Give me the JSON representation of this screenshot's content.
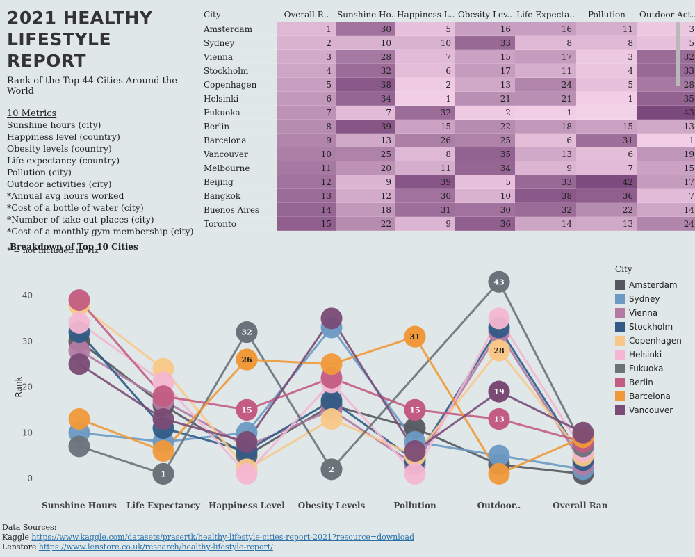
{
  "header": {
    "title": "2021 HEALTHY LIFESTYLE REPORT",
    "subtitle": "Rank of the Top 44 Cities Around the World",
    "metrics_heading": "10 Metrics",
    "metrics": [
      "Sunshine hours (city)",
      "Happiness level (country)",
      "Obesity levels (country)",
      "Life expectancy (country)",
      "Pollution (city)",
      "Outdoor activities (city)",
      "*Annual avg hours worked",
      "*Cost of a bottle of water (city)",
      "*Number of take out places (city)",
      "*Cost of a monthly gym membership (city)"
    ],
    "footnote": "* = not included in Viz"
  },
  "table": {
    "columns": [
      "City",
      "Overall R..",
      "Sunshine Ho..",
      "Happiness L..",
      "Obesity Lev..",
      "Life Expecta..",
      "Pollution",
      "Outdoor Act.."
    ],
    "rows": [
      {
        "city": "Amsterdam",
        "values": [
          "1",
          "30",
          "5",
          "16",
          "16",
          "11",
          "3"
        ]
      },
      {
        "city": "Sydney",
        "values": [
          "2",
          "10",
          "10",
          "33",
          "8",
          "8",
          "5"
        ]
      },
      {
        "city": "Vienna",
        "values": [
          "3",
          "28",
          "7",
          "15",
          "17",
          "3",
          "32"
        ]
      },
      {
        "city": "Stockholm",
        "values": [
          "4",
          "32",
          "6",
          "17",
          "11",
          "4",
          "33"
        ]
      },
      {
        "city": "Copenhagen",
        "values": [
          "5",
          "38",
          "2",
          "13",
          "24",
          "5",
          "28"
        ]
      },
      {
        "city": "Helsinki",
        "values": [
          "6",
          "34",
          "1",
          "21",
          "21",
          "1",
          "35"
        ]
      },
      {
        "city": "Fukuoka",
        "values": [
          "7",
          "7",
          "32",
          "2",
          "1",
          "",
          "43"
        ]
      },
      {
        "city": "Berlin",
        "values": [
          "8",
          "39",
          "15",
          "22",
          "18",
          "15",
          "13"
        ]
      },
      {
        "city": "Barcelona",
        "values": [
          "9",
          "13",
          "26",
          "25",
          "6",
          "31",
          "1"
        ]
      },
      {
        "city": "Vancouver",
        "values": [
          "10",
          "25",
          "8",
          "35",
          "13",
          "6",
          "19"
        ]
      },
      {
        "city": "Melbourne",
        "values": [
          "11",
          "20",
          "11",
          "34",
          "9",
          "7",
          "15"
        ]
      },
      {
        "city": "Beijing",
        "values": [
          "12",
          "9",
          "39",
          "5",
          "33",
          "42",
          "17"
        ]
      },
      {
        "city": "Bangkok",
        "values": [
          "13",
          "12",
          "30",
          "10",
          "38",
          "36",
          "7"
        ]
      },
      {
        "city": "Buenos Aires",
        "values": [
          "14",
          "18",
          "31",
          "30",
          "32",
          "22",
          "14"
        ]
      },
      {
        "city": "Toronto",
        "values": [
          "15",
          "22",
          "9",
          "36",
          "14",
          "13",
          "24"
        ]
      }
    ]
  },
  "breakdown_title": "Breakdown of Top 10 Cities",
  "chart_data": {
    "type": "line",
    "categories": [
      "Sunshine Hours",
      "Life Expectancy",
      "Happiness Level",
      "Obesity Levels",
      "Pollution",
      "Outdoor..",
      "Overall Rank"
    ],
    "ylabel": "Rank",
    "ylim": [
      0,
      43
    ],
    "yticks": [
      0,
      10,
      20,
      30,
      40
    ],
    "legend_title": "City",
    "legend_position": "right",
    "series": [
      {
        "name": "Amsterdam",
        "color": "#55595f",
        "values": [
          30,
          16,
          5,
          16,
          11,
          3,
          1
        ]
      },
      {
        "name": "Sydney",
        "color": "#6b9ac4",
        "values": [
          10,
          8,
          10,
          33,
          8,
          5,
          2
        ]
      },
      {
        "name": "Vienna",
        "color": "#b37aa3",
        "values": [
          28,
          17,
          7,
          15,
          3,
          32,
          3
        ]
      },
      {
        "name": "Stockholm",
        "color": "#315b86",
        "values": [
          32,
          11,
          6,
          17,
          4,
          33,
          4
        ]
      },
      {
        "name": "Copenhagen",
        "color": "#f9c888",
        "values": [
          38,
          24,
          2,
          13,
          5,
          28,
          5
        ]
      },
      {
        "name": "Helsinki",
        "color": "#f4b6d2",
        "values": [
          34,
          21,
          1,
          21,
          1,
          35,
          6
        ]
      },
      {
        "name": "Fukuoka",
        "color": "#6a737a",
        "values": [
          7,
          1,
          32,
          2,
          null,
          43,
          7
        ]
      },
      {
        "name": "Berlin",
        "color": "#c35c82",
        "values": [
          39,
          18,
          15,
          22,
          15,
          13,
          8
        ]
      },
      {
        "name": "Barcelona",
        "color": "#f0993a",
        "values": [
          13,
          6,
          26,
          25,
          31,
          1,
          9
        ]
      },
      {
        "name": "Vancouver",
        "color": "#7a4b75",
        "values": [
          25,
          13,
          8,
          35,
          6,
          19,
          10
        ]
      }
    ],
    "labeled_points": [
      {
        "series": "Fukuoka",
        "category": "Life Expectancy",
        "label": "1"
      },
      {
        "series": "Fukuoka",
        "category": "Happiness Level",
        "label": "32"
      },
      {
        "series": "Barcelona",
        "category": "Happiness Level",
        "label": "26"
      },
      {
        "series": "Berlin",
        "category": "Happiness Level",
        "label": "15"
      },
      {
        "series": "Fukuoka",
        "category": "Obesity Levels",
        "label": "2"
      },
      {
        "series": "Barcelona",
        "category": "Pollution",
        "label": "31"
      },
      {
        "series": "Berlin",
        "category": "Pollution",
        "label": "15"
      },
      {
        "series": "Fukuoka",
        "category": "Outdoor..",
        "label": "43"
      },
      {
        "series": "Copenhagen",
        "category": "Outdoor..",
        "label": "28"
      },
      {
        "series": "Vancouver",
        "category": "Outdoor..",
        "label": "19"
      },
      {
        "series": "Berlin",
        "category": "Outdoor..",
        "label": "13"
      }
    ]
  },
  "sources": {
    "heading": "Data Sources:",
    "kaggle_label": "Kaggle",
    "kaggle_url": "https://www.kaggle.com/datasets/prasertk/healthy-lifestyle-cities-report-2021?resource=download",
    "lenstore_label": "Lenstore",
    "lenstore_url": "https://www.lenstore.co.uk/research/healthy-lifestyle-report/"
  }
}
